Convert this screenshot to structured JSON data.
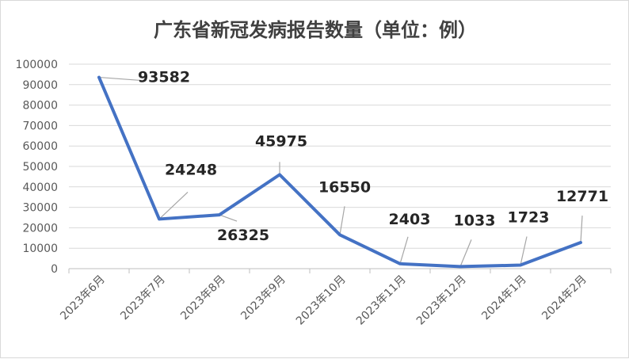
{
  "chart_data": {
    "type": "line",
    "title": "广东省新冠发病报告数量（单位：例）",
    "categories": [
      "2023年6月",
      "2023年7月",
      "2023年8月",
      "2023年9月",
      "2023年10月",
      "2023年11月",
      "2023年12月",
      "2024年1月",
      "2024年2月"
    ],
    "series": [
      {
        "values": [
          93582,
          24248,
          26325,
          45975,
          16550,
          2403,
          1033,
          1723,
          12771
        ],
        "color": "#4472c4"
      }
    ],
    "ylim": [
      0,
      100000
    ],
    "yticks": [
      "0",
      "10000",
      "20000",
      "30000",
      "40000",
      "50000",
      "60000",
      "70000",
      "80000",
      "90000",
      "100000"
    ],
    "data_labels": [
      "93582",
      "24248",
      "26325",
      "45975",
      "16550",
      "2403",
      "1033",
      "1723",
      "12771"
    ],
    "xlabel": "",
    "ylabel": "",
    "grid": true,
    "legend": "none"
  }
}
